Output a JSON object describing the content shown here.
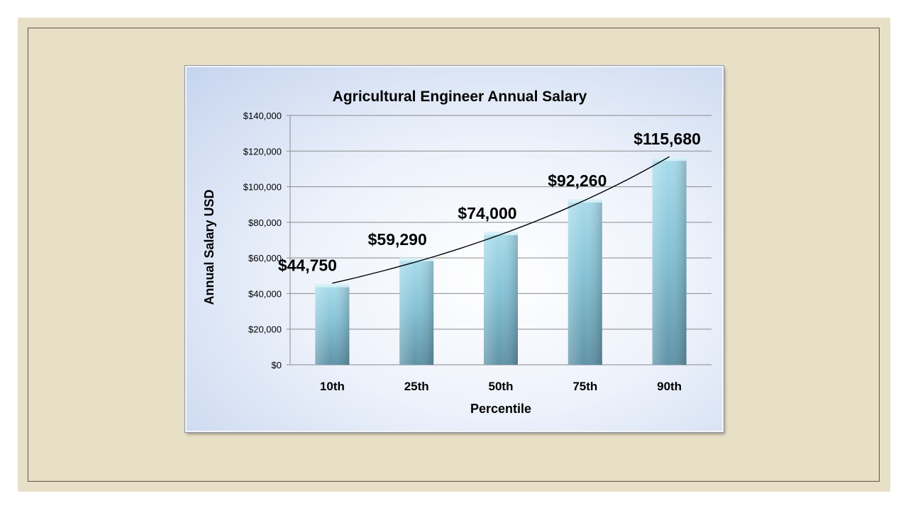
{
  "chart_data": {
    "type": "bar",
    "title": "Agricultural Engineer Annual Salary",
    "xlabel": "Percentile",
    "ylabel": "Annual Salary USD",
    "categories": [
      "10th",
      "25th",
      "50th",
      "75th",
      "90th"
    ],
    "values": [
      44750,
      59290,
      74000,
      92260,
      115680
    ],
    "data_labels": [
      "$44,750",
      "$59,290",
      "$74,000",
      "$92,260",
      "$115,680"
    ],
    "ylim": [
      0,
      140000
    ],
    "y_ticks": [
      0,
      20000,
      40000,
      60000,
      80000,
      100000,
      120000,
      140000
    ],
    "y_tick_labels": [
      "$0",
      "$20,000",
      "$40,000",
      "$60,000",
      "$80,000",
      "$100,000",
      "$120,000",
      "$140,000"
    ],
    "grid": true,
    "trendline": "exponential",
    "colors": {
      "bar_top": "#a9dcec",
      "bar_mid": "#86c3d6",
      "bar_bottom": "#5f93a7",
      "gridline": "#8a8a8a",
      "trendline": "#000000"
    }
  }
}
